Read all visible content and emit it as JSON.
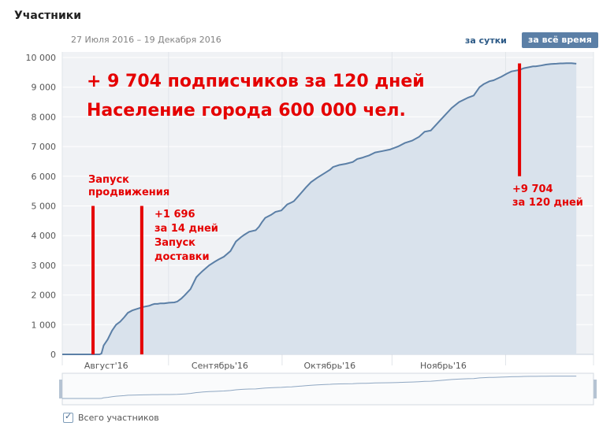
{
  "header": {
    "title": "Участники",
    "date_range": "27 Июля 2016 – 19 Декабря 2016",
    "period_day": "за сутки",
    "period_all": "за всё время"
  },
  "legend": {
    "label": "Всего участников",
    "checked": true
  },
  "chart_data": {
    "type": "area",
    "series": [
      {
        "name": "Всего участников",
        "color": "#5b7fa6",
        "fill": "#d9e2ec",
        "x": [
          0,
          6.3,
          8.4,
          9.5,
          10.2,
          10.7,
          11.3,
          12.4,
          13.6,
          14.7,
          15.8,
          16.9,
          17.9,
          19.1,
          20.1,
          21.1,
          22.2,
          23.8,
          24.6,
          25.2,
          26.0,
          26.8,
          27.8,
          29.2,
          30.6,
          31.4,
          32.5,
          33.5,
          35.0,
          36.6,
          37.4,
          38.4,
          40.1,
          41.6,
          42.7,
          44.1,
          45.9,
          47.4,
          48.8,
          49.7,
          51.0,
          52.8,
          53.7,
          54.5,
          55.4,
          57.0,
          58.2,
          59.8,
          61.4,
          62.6,
          63.2,
          64.8,
          66.5,
          67.9,
          69.6,
          71.8,
          73.1,
          73.9,
          75.6,
          77.4,
          79.3,
          80.5,
          81.8,
          82.7,
          83.7,
          85.4,
          87.4,
          89.4,
          91.6,
          93.5,
          95.5,
          97.4,
          98.9,
          100.6,
          102.9,
          104.8,
          106.3,
          108.3,
          110.8,
          112.3,
          113.9,
          115.0,
          116.6,
          117.7,
          119.8,
          121.4,
          122.6,
          124.8,
          126.0,
          127.6,
          128.5,
          129.2,
          130.7,
          132.0,
          133.4,
          134.9,
          135.9,
          136.6,
          137.6,
          139.0,
          140.3
        ],
        "values": [
          0,
          0,
          0,
          0,
          0,
          30,
          300,
          500,
          800,
          1000,
          1100,
          1250,
          1400,
          1480,
          1520,
          1560,
          1600,
          1640,
          1680,
          1700,
          1700,
          1720,
          1720,
          1740,
          1750,
          1780,
          1880,
          2000,
          2200,
          2600,
          2700,
          2820,
          3000,
          3120,
          3200,
          3290,
          3480,
          3800,
          3950,
          4030,
          4130,
          4180,
          4300,
          4450,
          4600,
          4700,
          4800,
          4850,
          5050,
          5120,
          5160,
          5380,
          5620,
          5800,
          5950,
          6120,
          6220,
          6310,
          6380,
          6420,
          6480,
          6580,
          6620,
          6660,
          6700,
          6800,
          6850,
          6900,
          7000,
          7120,
          7200,
          7330,
          7500,
          7540,
          7850,
          8100,
          8300,
          8500,
          8650,
          8720,
          9000,
          9100,
          9200,
          9230,
          9350,
          9460,
          9530,
          9580,
          9640,
          9680,
          9700,
          9704,
          9730,
          9760,
          9780,
          9790,
          9800,
          9800,
          9810,
          9810,
          9790
        ]
      }
    ],
    "y_ticks": [
      "0",
      "1 000",
      "2 000",
      "3 000",
      "4 000",
      "5 000",
      "6 000",
      "7 000",
      "8 000",
      "9 000",
      "10 000"
    ],
    "y_tick_values": [
      0,
      1000,
      2000,
      3000,
      4000,
      5000,
      6000,
      7000,
      8000,
      9000,
      10000
    ],
    "ylim": [
      0,
      10000
    ],
    "xlim": [
      0,
      145
    ],
    "x_ticks": [
      {
        "label": "Август'16",
        "x": 12
      },
      {
        "label": "Сентябрь'16",
        "x": 43
      },
      {
        "label": "Октябрь'16",
        "x": 73
      },
      {
        "label": "Ноябрь'16",
        "x": 104
      }
    ],
    "x_gridlines": [
      0,
      29,
      60,
      90,
      121,
      145
    ],
    "grid": true,
    "annotations": {
      "headline_1": "+ 9 704 подписчиков за 120 дней",
      "headline_2": "Население города 600 000 чел.",
      "launch_promo": [
        "Запуск",
        "продвижения"
      ],
      "delivery": [
        "+1 696",
        "за 14 дней",
        "Запуск",
        "доставки"
      ],
      "total": [
        "+9 704",
        "за 120 дней"
      ],
      "markers": [
        {
          "x": 8.4,
          "y_from": 0,
          "y_to": 5000
        },
        {
          "x": 21.7,
          "y_from": 0,
          "y_to": 5000
        },
        {
          "x": 124.8,
          "y_from": 6000,
          "y_to": 9800
        }
      ]
    }
  }
}
